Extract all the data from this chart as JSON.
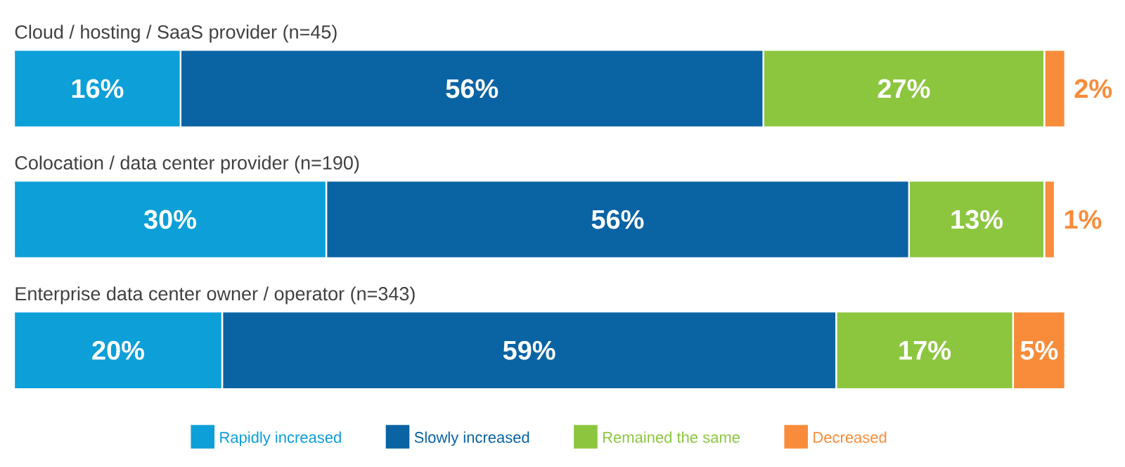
{
  "chart_data": {
    "type": "bar",
    "orientation": "horizontal",
    "stacked": true,
    "tick_labels": false,
    "legend": "bottom",
    "categories": [
      "Cloud / hosting / SaaS provider (n=45)",
      "Colocation / data center provider (n=190)",
      "Enterprise data center owner / operator (n=343)"
    ],
    "series": [
      {
        "name": "Rapidly increased",
        "color": "#0c9fd8",
        "values": [
          16,
          30,
          20
        ],
        "value_labels": [
          "16%",
          "30%",
          "20%"
        ]
      },
      {
        "name": "Slowly increased",
        "color": "#0a63a3",
        "values": [
          56,
          56,
          59
        ],
        "value_labels": [
          "56%",
          "56%",
          "59%"
        ]
      },
      {
        "name": "Remained the same",
        "color": "#8cc63f",
        "values": [
          27,
          13,
          17
        ],
        "value_labels": [
          "27%",
          "13%",
          "17%"
        ]
      },
      {
        "name": "Decreased",
        "color": "#f88c3a",
        "values": [
          2,
          1,
          5
        ],
        "value_labels": [
          "2%",
          "1%",
          "5%"
        ]
      }
    ]
  }
}
